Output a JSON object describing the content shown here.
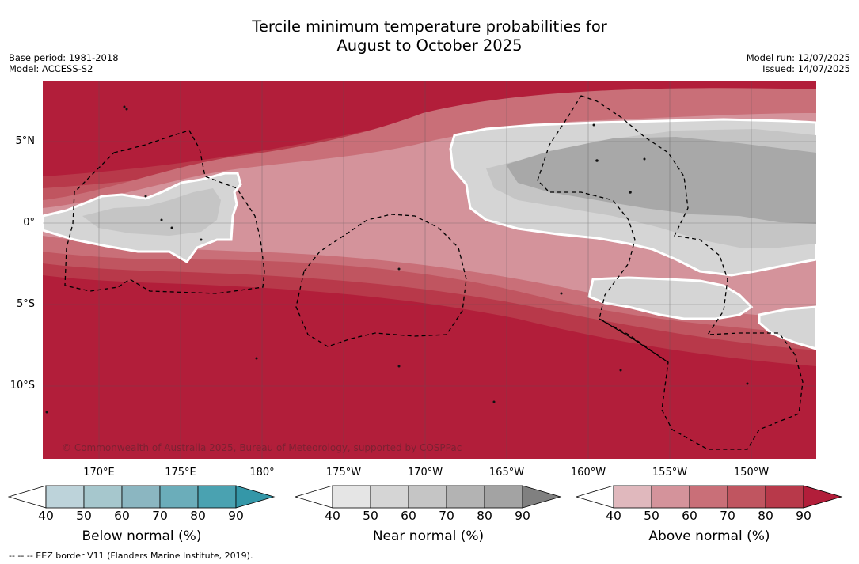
{
  "title_line1": "Tercile minimum temperature probabilities for",
  "title_line2": "August to October 2025",
  "base_period": "Base period: 1981-2018",
  "model": "Model: ACCESS-S2",
  "model_run": "Model run: 12/07/2025",
  "issued": "Issued: 14/07/2025",
  "lat_labels": [
    "5°N",
    "0°",
    "5°S",
    "10°S"
  ],
  "lon_labels": [
    "170°E",
    "175°E",
    "180°",
    "175°W",
    "170°W",
    "165°W",
    "160°W",
    "155°W",
    "150°W"
  ],
  "copyright": "© Commonwealth of Australia 2025, Bureau of Meteorology, supported by COSPPac",
  "eez_note": "-- -- -- EEZ border V11 (Flanders Marine Institute, 2019).",
  "colorbars": [
    {
      "title": "Below normal (%)",
      "ticks": [
        "40",
        "50",
        "60",
        "70",
        "80",
        "90"
      ],
      "colors": [
        "#ffffff",
        "#bdd3da",
        "#a6c7cd",
        "#8bb6c1",
        "#6badba",
        "#4aa2b1",
        "#3497a8"
      ]
    },
    {
      "title": "Near normal (%)",
      "ticks": [
        "40",
        "50",
        "60",
        "70",
        "80",
        "90"
      ],
      "colors": [
        "#ffffff",
        "#e5e5e5",
        "#d5d5d5",
        "#c5c5c5",
        "#b3b3b3",
        "#a3a3a3",
        "#808080"
      ]
    },
    {
      "title": "Above normal (%)",
      "ticks": [
        "40",
        "50",
        "60",
        "70",
        "80",
        "90"
      ],
      "colors": [
        "#ffffff",
        "#e0b8bd",
        "#d4939b",
        "#c96f78",
        "#c05560",
        "#b8394a",
        "#b21e3a"
      ]
    }
  ],
  "map_colors": {
    "above_90": "#b21e3a",
    "above_80": "#b8394a",
    "above_70": "#c05560",
    "above_60": "#c96f78",
    "above_50": "#d4939b",
    "near_50": "#d5d5d5",
    "near_60": "#c5c5c5",
    "near_70": "#a8a8a8"
  }
}
